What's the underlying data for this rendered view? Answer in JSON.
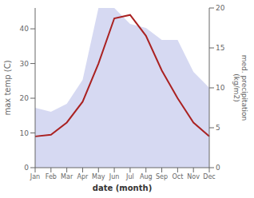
{
  "chart_data": {
    "type": "line",
    "categories": [
      "Jan",
      "Feb",
      "Mar",
      "Apr",
      "May",
      "Jun",
      "Jul",
      "Aug",
      "Sep",
      "Oct",
      "Nov",
      "Dec"
    ],
    "series": [
      {
        "type": "area",
        "axis": "y2",
        "color": "#c8ccee",
        "values": [
          7.5,
          7,
          8,
          11,
          20,
          20,
          18,
          17.5,
          16,
          16,
          12,
          10
        ]
      },
      {
        "type": "line",
        "color": "#aa2222",
        "values": [
          9,
          9.5,
          13,
          19,
          30,
          43,
          44,
          38,
          28,
          20,
          13,
          9
        ]
      }
    ],
    "xlabel": "date (month)",
    "ylabel": "max temp (C)",
    "y2label": "med. precipitation\n(kg/m2)",
    "ylim": [
      0,
      46
    ],
    "yticks": [
      0,
      10,
      20,
      30,
      40
    ],
    "y2lim": [
      0,
      20
    ],
    "y2ticks": [
      0,
      5,
      10,
      15,
      20
    ]
  }
}
